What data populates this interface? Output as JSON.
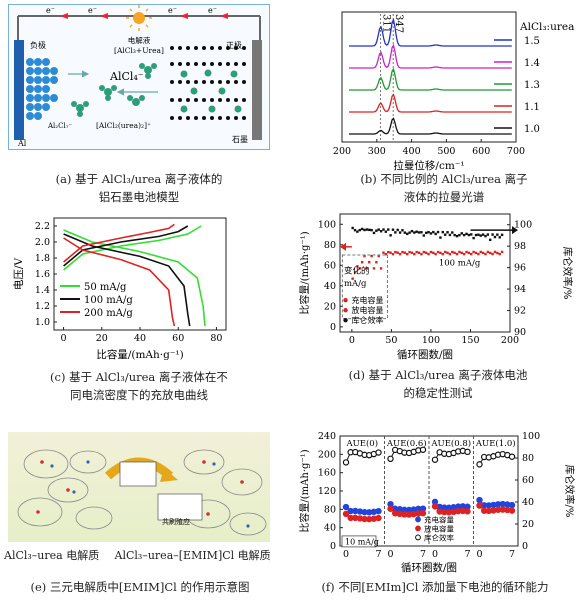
{
  "panel_a": {
    "labels": {
      "electron": "e⁻",
      "electrolyte": "电解液",
      "electrolyte_formula": "[AlCl₃+Urea]",
      "anode": "负极",
      "cathode": "正极",
      "alcl4": "AlCl₄⁻",
      "al2cl7": "Al₂Cl₇⁻",
      "complex": "[AlCl₂(urea)₂]⁺",
      "al": "Al",
      "graphite": "石墨"
    },
    "caption_line1": "(a) 基于 AlCl₃/urea 离子液体的",
    "caption_line2": "铝石墨电池模型"
  },
  "panel_b": {
    "legend_title": "AlCl₃:urea",
    "peak_labels": [
      "311",
      "347"
    ],
    "xlabel": "拉曼位移/cm⁻¹",
    "caption_line1": "(b) 不同比例的 AlCl₃/urea 离子",
    "caption_line2": "液体的拉曼光谱"
  },
  "panel_c": {
    "ylabel": "电压/V",
    "xlabel": "比容量/(mAh·g⁻¹)",
    "caption_line1": "(c) 基于 AlCl₃/urea 离子液体在不",
    "caption_line2": "同电流密度下的充放电曲线"
  },
  "panel_d": {
    "ylabel_left": "比容量/(mAh·g⁻¹)",
    "ylabel_right": "库仑效率/%",
    "xlabel": "循环圈数/圈",
    "annotation_rate": "100 mA/g",
    "annotation_change1": "变化的",
    "annotation_change2": "mA/g",
    "legend": [
      "充电容量",
      "放电容量",
      "库仑效率"
    ],
    "caption_line1": "(d) 基于 AlCl₃/urea 离子液体电池",
    "caption_line2": "的稳定性测试"
  },
  "panel_e": {
    "label_left": "AlCl₃–urea 电解质",
    "label_right": "AlCl₃–urea–[EMIM]Cl 电解质",
    "center_label": "共刷殖应",
    "caption": "(e) 三元电解质中[EMIM]Cl 的作用示意图"
  },
  "panel_f": {
    "ylabel_left": "比容量/(mAh·g⁻¹)",
    "ylabel_right": "库仑效率/%",
    "xlabel": "循环圈数/圈",
    "segments": [
      "AUE(0)",
      "AUE(0.6)",
      "AUE(0.8)",
      "AUE(1.0)"
    ],
    "annotation_rate": "10 mA/g",
    "legend": [
      "充电容量",
      "放电容量",
      "库仑效率"
    ],
    "caption": "(f) 不同[EMIm]Cl 添加量下电池的循环能力"
  },
  "chart_data": [
    {
      "type": "line",
      "id": "raman",
      "xlabel": "拉曼位移/cm⁻¹",
      "xlim": [
        200,
        700
      ],
      "xticks": [
        200,
        300,
        400,
        500,
        600,
        700
      ],
      "legend_title": "AlCl₃:urea",
      "series": [
        {
          "name": "1.5",
          "color": "#2233cc",
          "peaks": [
            [
              311,
              0.55
            ],
            [
              347,
              0.75
            ]
          ]
        },
        {
          "name": "1.4",
          "color": "#cc22cc",
          "peaks": [
            [
              311,
              0.45
            ],
            [
              347,
              0.65
            ]
          ]
        },
        {
          "name": "1.3",
          "color": "#229933",
          "peaks": [
            [
              311,
              0.35
            ],
            [
              347,
              0.6
            ]
          ]
        },
        {
          "name": "1.1",
          "color": "#dd2222",
          "peaks": [
            [
              311,
              0.25
            ],
            [
              347,
              0.5
            ]
          ]
        },
        {
          "name": "1.0",
          "color": "#111111",
          "peaks": [
            [
              311,
              0.1
            ],
            [
              347,
              0.45
            ]
          ]
        }
      ]
    },
    {
      "type": "line",
      "id": "charge_discharge",
      "xlabel": "比容量/(mAh·g⁻¹)",
      "ylabel": "电压/V",
      "xlim": [
        -5,
        85
      ],
      "ylim": [
        0.9,
        2.3
      ],
      "xticks": [
        0,
        20,
        40,
        60,
        80
      ],
      "yticks": [
        1.0,
        1.2,
        1.4,
        1.6,
        1.8,
        2.0,
        2.2
      ],
      "series": [
        {
          "name": "50 mA/g",
          "color": "#33dd33",
          "charge": [
            [
              0,
              1.65
            ],
            [
              10,
              1.85
            ],
            [
              30,
              1.95
            ],
            [
              50,
              2.02
            ],
            [
              65,
              2.1
            ],
            [
              72,
              2.2
            ]
          ],
          "discharge": [
            [
              0,
              2.15
            ],
            [
              15,
              2.0
            ],
            [
              40,
              1.88
            ],
            [
              60,
              1.75
            ],
            [
              70,
              1.55
            ],
            [
              73,
              1.2
            ],
            [
              74,
              0.95
            ]
          ]
        },
        {
          "name": "100 mA/g",
          "color": "#111111",
          "charge": [
            [
              0,
              1.7
            ],
            [
              10,
              1.9
            ],
            [
              30,
              2.0
            ],
            [
              50,
              2.07
            ],
            [
              60,
              2.13
            ],
            [
              65,
              2.2
            ]
          ],
          "discharge": [
            [
              0,
              2.1
            ],
            [
              15,
              1.95
            ],
            [
              40,
              1.82
            ],
            [
              55,
              1.7
            ],
            [
              63,
              1.45
            ],
            [
              65,
              1.1
            ],
            [
              66,
              0.95
            ]
          ]
        },
        {
          "name": "200 mA/g",
          "color": "#dd2222",
          "charge": [
            [
              0,
              1.75
            ],
            [
              10,
              1.95
            ],
            [
              30,
              2.05
            ],
            [
              45,
              2.12
            ],
            [
              55,
              2.17
            ],
            [
              58,
              2.22
            ]
          ],
          "discharge": [
            [
              0,
              2.05
            ],
            [
              10,
              1.9
            ],
            [
              30,
              1.78
            ],
            [
              45,
              1.65
            ],
            [
              55,
              1.4
            ],
            [
              57,
              1.05
            ],
            [
              58,
              0.95
            ]
          ]
        }
      ]
    },
    {
      "type": "scatter",
      "id": "stability",
      "xlabel": "循环圈数/圈",
      "ylabel": "比容量/(mAh·g⁻¹)",
      "y2label": "库仑效率/%",
      "xlim": [
        -15,
        200
      ],
      "ylim": [
        -5,
        110
      ],
      "y2lim": [
        90,
        101
      ],
      "xticks": [
        0,
        50,
        100,
        150,
        200
      ],
      "yticks": [
        0,
        20,
        40,
        60,
        80,
        100
      ],
      "y2ticks": [
        90,
        92,
        94,
        96,
        98,
        100
      ],
      "series": [
        {
          "name": "充电容量",
          "color": "#dd2222",
          "approx_value": 73
        },
        {
          "name": "放电容量",
          "color": "#dd2222",
          "approx_value": 71
        },
        {
          "name": "库仑效率",
          "color": "#111111",
          "approx_value_percent": 99.3
        }
      ]
    },
    {
      "type": "scatter",
      "id": "cycling_emim",
      "xlabel": "循环圈数/圈",
      "ylabel": "比容量/(mAh·g⁻¹)",
      "y2label": "库仑效率/%",
      "ylim": [
        0,
        240
      ],
      "yticks": [
        0,
        40,
        80,
        120,
        160,
        200,
        240
      ],
      "y2lim": [
        0,
        100
      ],
      "y2ticks": [
        0,
        20,
        40,
        60,
        80,
        100
      ],
      "segments": [
        "AUE(0)",
        "AUE(0.6)",
        "AUE(0.8)",
        "AUE(1.0)"
      ],
      "xtick_labels": [
        "0",
        "7",
        "0",
        "7",
        "0",
        "7",
        "0",
        "7"
      ],
      "series": [
        {
          "name": "充电容量",
          "color": "#2244dd",
          "segment_values": [
            75,
            80,
            85,
            90
          ]
        },
        {
          "name": "放电容量",
          "color": "#dd2222",
          "segment_values": [
            60,
            70,
            75,
            78
          ]
        },
        {
          "name": "库仑效率",
          "color": "#111111",
          "segment_values": [
            84,
            86,
            85,
            82
          ]
        }
      ]
    }
  ]
}
